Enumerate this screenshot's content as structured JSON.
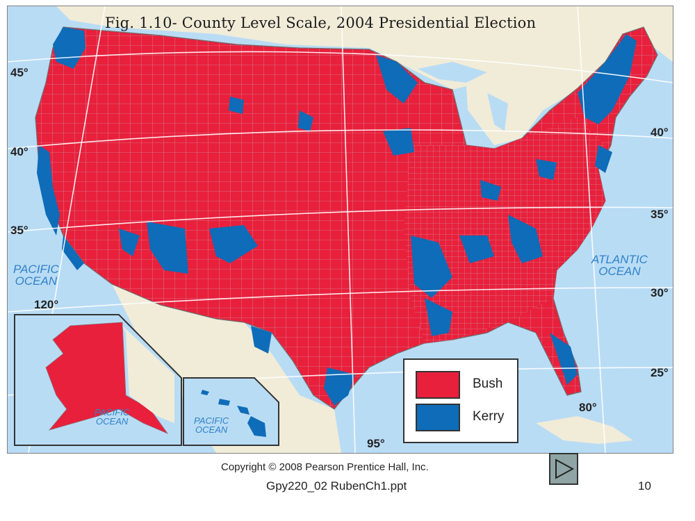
{
  "title": "Fig. 1.10- County Level Scale, 2004 Presidential Election",
  "latitude_labels": {
    "west_45": "45°",
    "west_40": "40°",
    "west_35": "35°",
    "east_40": "40°",
    "east_35": "35°",
    "east_30": "30°",
    "east_25": "25°"
  },
  "longitude_labels": {
    "lon_120": "120°",
    "lon_95": "95°",
    "lon_80": "80°"
  },
  "oceans": {
    "pacific_main_line1": "PACIFIC",
    "pacific_main_line2": "OCEAN",
    "atlantic_line1": "ATLANTIC",
    "atlantic_line2": "OCEAN",
    "pacific_alaska_line1": "PACIFIC",
    "pacific_alaska_line2": "OCEAN",
    "pacific_hawaii_line1": "PACIFIC",
    "pacific_hawaii_line2": "OCEAN"
  },
  "legend": {
    "items": [
      {
        "label": "Bush",
        "color": "#e8203c"
      },
      {
        "label": "Kerry",
        "color": "#0e6cb8"
      }
    ]
  },
  "footer": {
    "copyright": "Copyright © 2008 Pearson Prentice Hall, Inc.",
    "filename": "Gpy220_02 RubenCh1.ppt",
    "page_number": "10"
  },
  "colors": {
    "bush": "#e8203c",
    "kerry": "#0e6cb8",
    "water": "#b9dcf5",
    "land_outside": "#f1ecd8"
  },
  "icons": {
    "next": "play-triangle-icon"
  }
}
